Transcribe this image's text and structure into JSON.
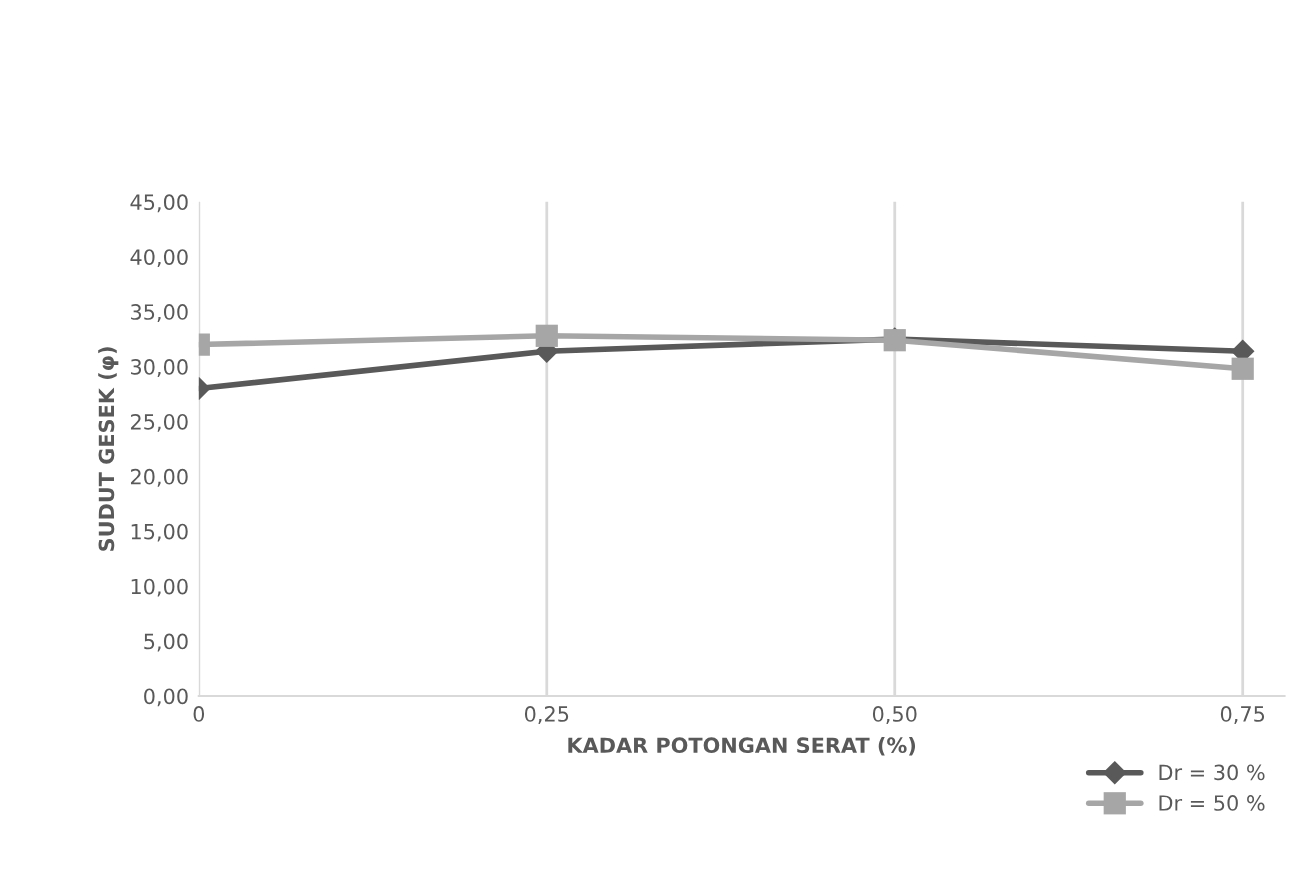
{
  "chart_data": {
    "type": "line",
    "xlabel": "KADAR POTONGAN SERAT (%)",
    "ylabel": "SUDUT GESEK (φ)",
    "categories": [
      "0",
      "0,25",
      "0,50",
      "0,75"
    ],
    "series": [
      {
        "name": "Dr = 30 %",
        "color": "#595959",
        "marker": "diamond",
        "values": [
          28.0,
          31.4,
          32.5,
          31.4
        ]
      },
      {
        "name": "Dr = 50 %",
        "color": "#a6a6a6",
        "marker": "square",
        "values": [
          32.0,
          32.8,
          32.4,
          29.8
        ]
      }
    ],
    "ylim": [
      0,
      45
    ],
    "yticks": [
      {
        "value": 0,
        "label": "0,00"
      },
      {
        "value": 5,
        "label": "5,00"
      },
      {
        "value": 10,
        "label": "10,00"
      },
      {
        "value": 15,
        "label": "15,00"
      },
      {
        "value": 20,
        "label": "20,00"
      },
      {
        "value": 25,
        "label": "25,00"
      },
      {
        "value": 30,
        "label": "30,00"
      },
      {
        "value": 35,
        "label": "35,00"
      },
      {
        "value": 40,
        "label": "40,00"
      },
      {
        "value": 45,
        "label": "45,00"
      }
    ],
    "grid": "x",
    "legend": "bottom right",
    "line_style": "solid"
  }
}
